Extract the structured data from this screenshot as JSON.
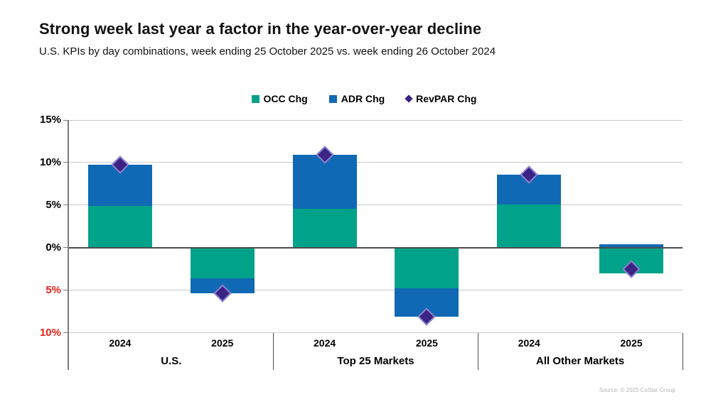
{
  "chart_data": {
    "type": "bar",
    "stacked": true,
    "title": "Strong week last year a factor in the year-over-year decline",
    "subtitle": "U.S. KPIs by day combinations, week ending 25 October 2025 vs. week ending 26 October 2024",
    "source": "Source: © 2025 CoStar Group",
    "legend_position": "top",
    "grid": true,
    "legend": [
      {
        "label": "OCC Chg",
        "marker": "square",
        "color": "#00A389"
      },
      {
        "label": "ADR Chg",
        "marker": "square",
        "color": "#1069B4"
      },
      {
        "label": "RevPAR Chg",
        "marker": "diamond",
        "color": "#3B2483"
      }
    ],
    "series": [
      {
        "name": "occ",
        "key": "occ_chg",
        "color": "#00A389"
      },
      {
        "name": "adr",
        "key": "adr_chg",
        "color": "#1069B4"
      }
    ],
    "marker": {
      "name": "revpar",
      "key": "revpar_chg",
      "fill": "#3B2483",
      "border": "#8E83D2"
    },
    "y_axis": {
      "min": -10,
      "max": 15,
      "step": 5,
      "unit": "%",
      "ticks": [
        {
          "value": 15,
          "label": "15%",
          "color": "#000000"
        },
        {
          "value": 10,
          "label": "10%",
          "color": "#000000"
        },
        {
          "value": 5,
          "label": "5%",
          "color": "#000000"
        },
        {
          "value": 0,
          "label": "0%",
          "color": "#000000"
        },
        {
          "value": -5,
          "label": "5%",
          "color": "#E2231A"
        },
        {
          "value": -10,
          "label": "10%",
          "color": "#E2231A"
        }
      ]
    },
    "groups": [
      {
        "label": "U.S.",
        "columns": [
          {
            "category": "2024",
            "occ_chg": 4.9,
            "adr_chg": 4.8,
            "revpar_chg": 9.7
          },
          {
            "category": "2025",
            "occ_chg": -3.6,
            "adr_chg": -1.8,
            "revpar_chg": -5.4
          }
        ]
      },
      {
        "label": "Top 25 Markets",
        "columns": [
          {
            "category": "2024",
            "occ_chg": 4.6,
            "adr_chg": 6.3,
            "revpar_chg": 10.9
          },
          {
            "category": "2025",
            "occ_chg": -4.8,
            "adr_chg": -3.3,
            "revpar_chg": -8.1
          }
        ]
      },
      {
        "label": "All Other Markets",
        "columns": [
          {
            "category": "2024",
            "occ_chg": 5.1,
            "adr_chg": 3.5,
            "revpar_chg": 8.6
          },
          {
            "category": "2025",
            "occ_chg": -3.0,
            "adr_chg": 0.4,
            "revpar_chg": -2.5
          }
        ]
      }
    ]
  }
}
